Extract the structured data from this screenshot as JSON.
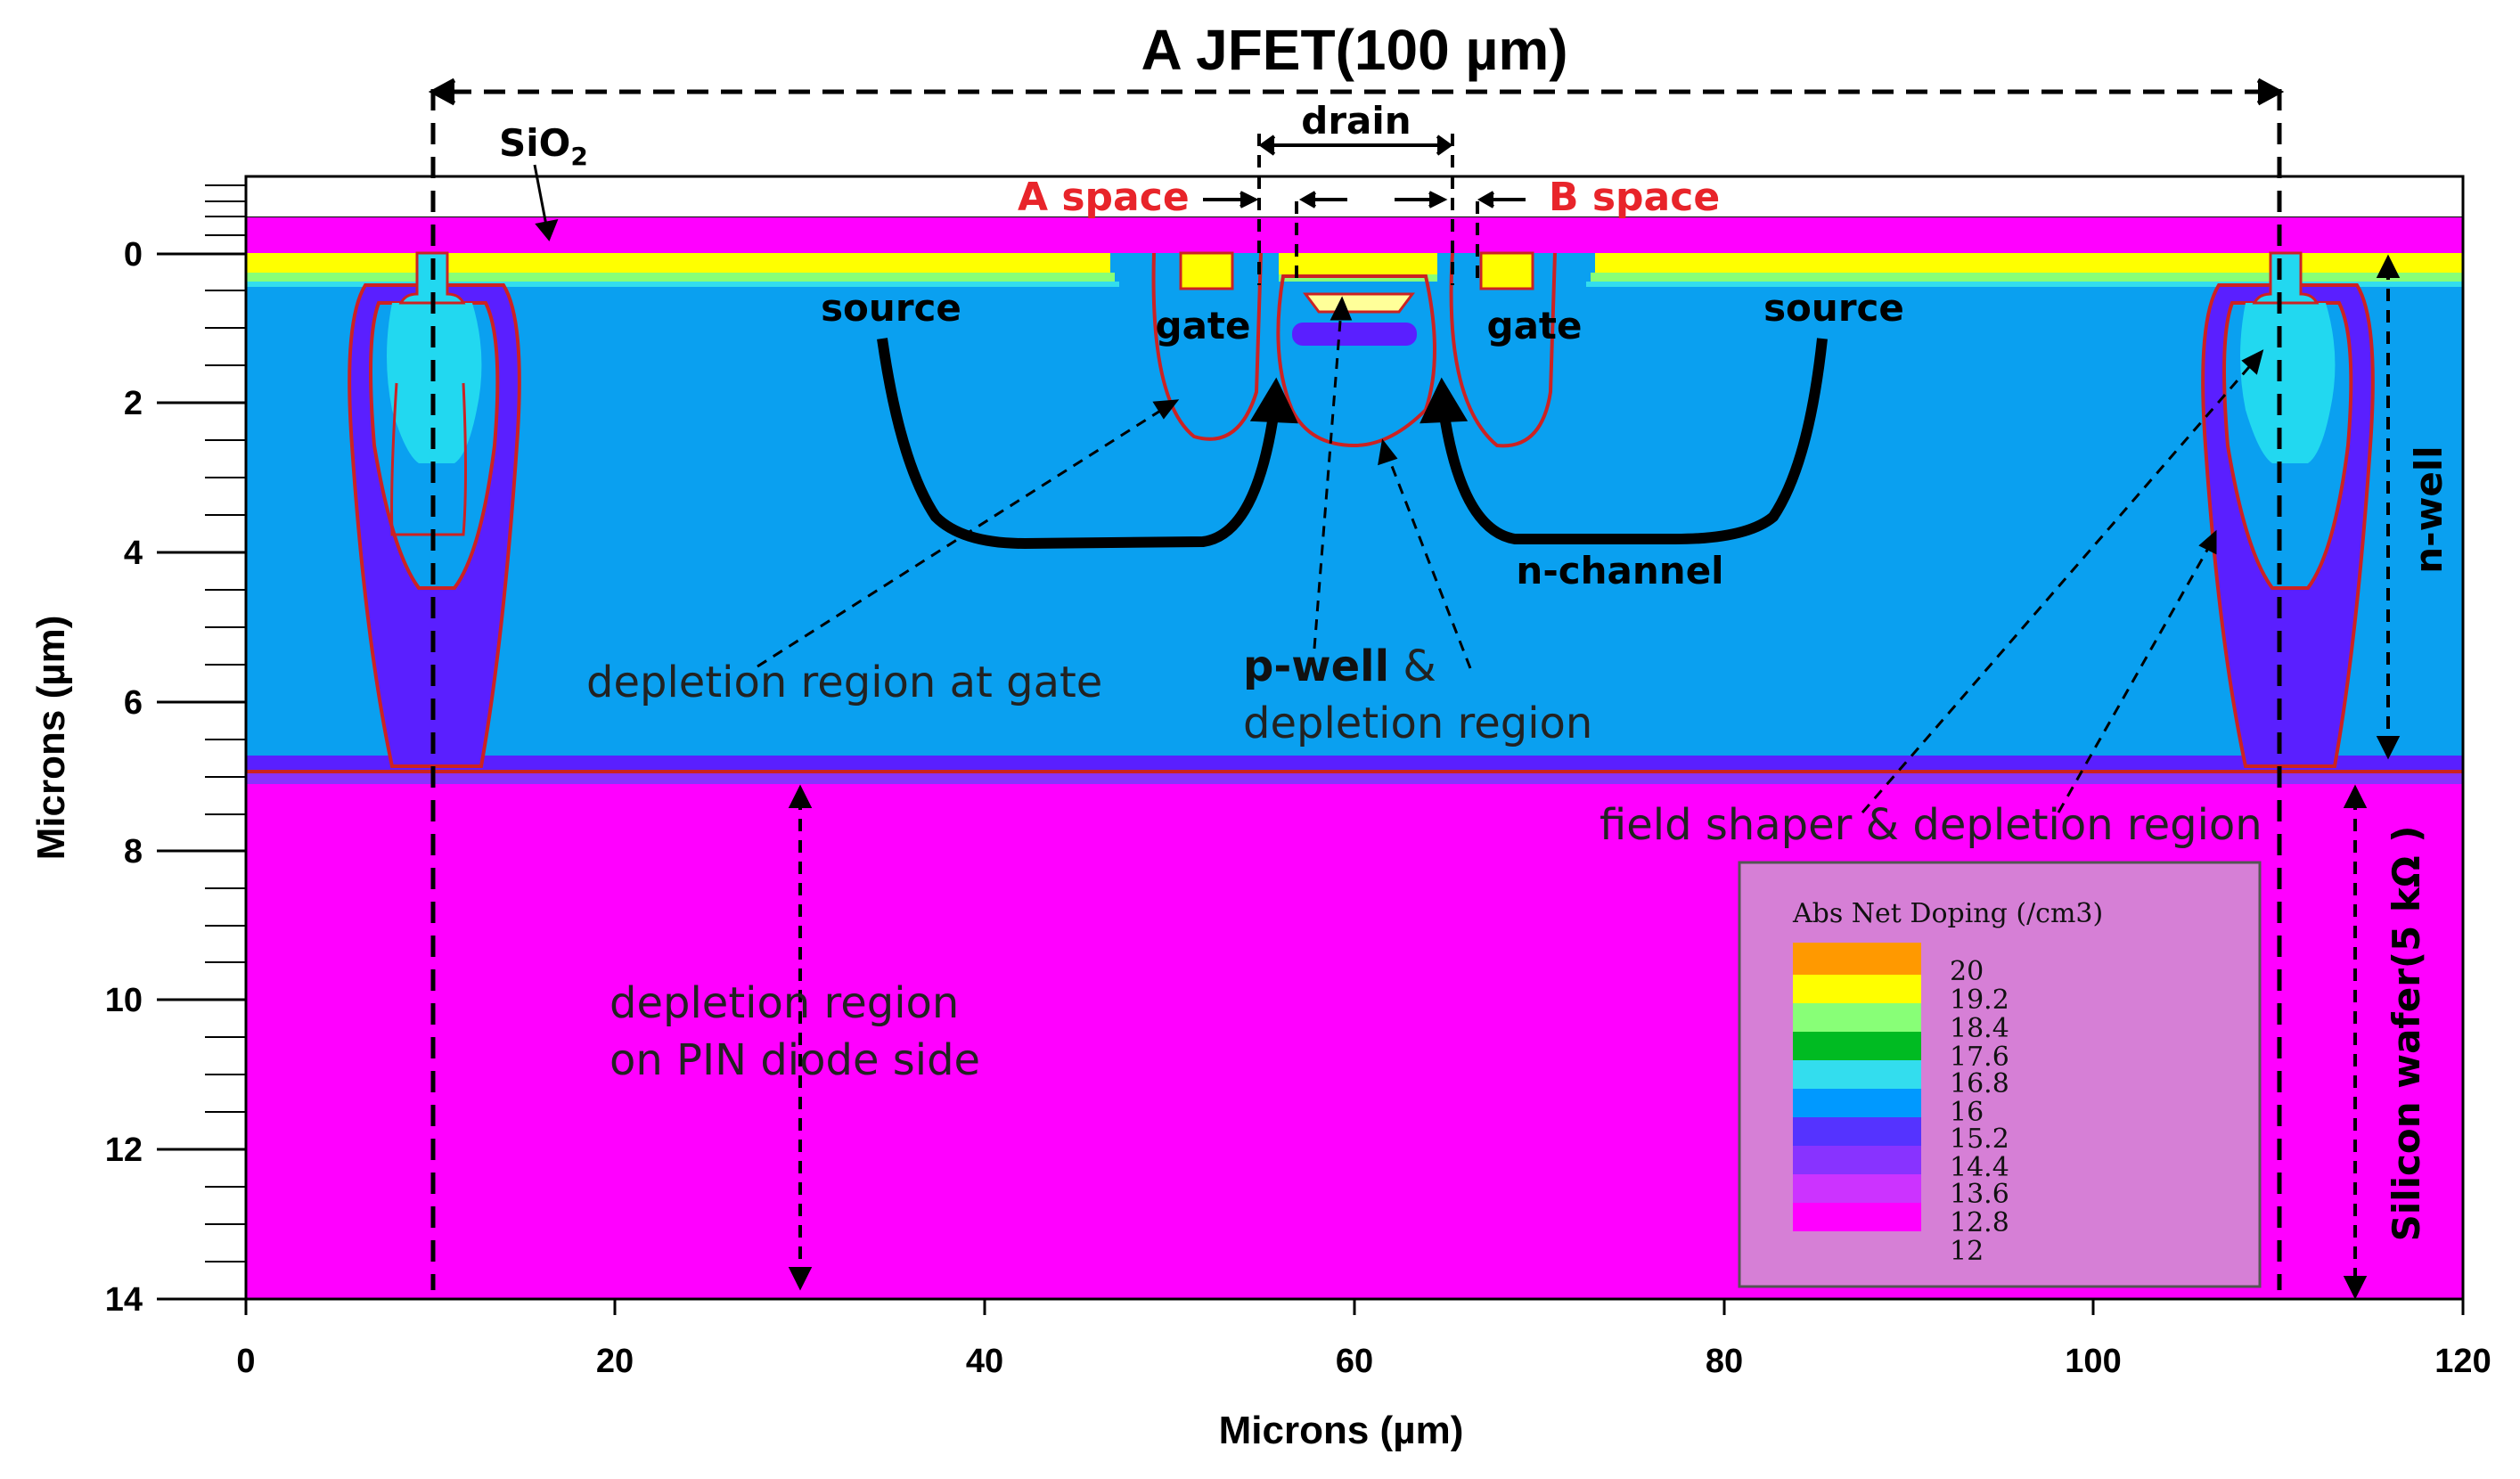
{
  "title": "A JFET(100 µm)",
  "axes": {
    "x_label": "Microns (µm)",
    "y_label": "Microns (µm)",
    "x_ticks": [
      "0",
      "20",
      "40",
      "60",
      "80",
      "100",
      "120"
    ],
    "y_ticks": [
      "0",
      "2",
      "4",
      "6",
      "8",
      "10",
      "12",
      "14"
    ]
  },
  "labels": {
    "sio2_main": "SiO",
    "sio2_sub": "2",
    "drain": "drain",
    "a_space": "A space",
    "b_space": "B space",
    "source_left": "source",
    "source_right": "source",
    "gate_left": "gate",
    "gate_right": "gate",
    "n_channel": "n-channel",
    "n_well": "n-well",
    "depletion_gate": "depletion region at gate",
    "pwell_bold": "p-well",
    "pwell_amp": " &",
    "pwell_line2": "depletion region",
    "field_shaper": "field shaper & depletion region",
    "pin_line1": "depletion region",
    "pin_line2": "on PIN diode side",
    "silicon_wafer": "Silicon wafer(5 kΩ )"
  },
  "legend": {
    "title": "Abs Net Doping (/cm3)",
    "levels": [
      "20",
      "19.2",
      "18.4",
      "17.6",
      "16.8",
      "16",
      "15.2",
      "14.4",
      "13.6",
      "12.8",
      "12"
    ],
    "colors": [
      "#ff9900",
      "#ffff00",
      "#88ff77",
      "#00bb22",
      "#33ddee",
      "#0099ff",
      "#5533ff",
      "#8833ff",
      "#cc33ff",
      "#ff00ff"
    ]
  },
  "colors": {
    "magenta": "#ff00ff",
    "nwell_blue": "#0aa0f0",
    "violet": "#5a1fff",
    "cyan": "#22d8f0",
    "yellow": "#ffff00",
    "contour": "#cc2222",
    "label_red": "#e8242a"
  }
}
